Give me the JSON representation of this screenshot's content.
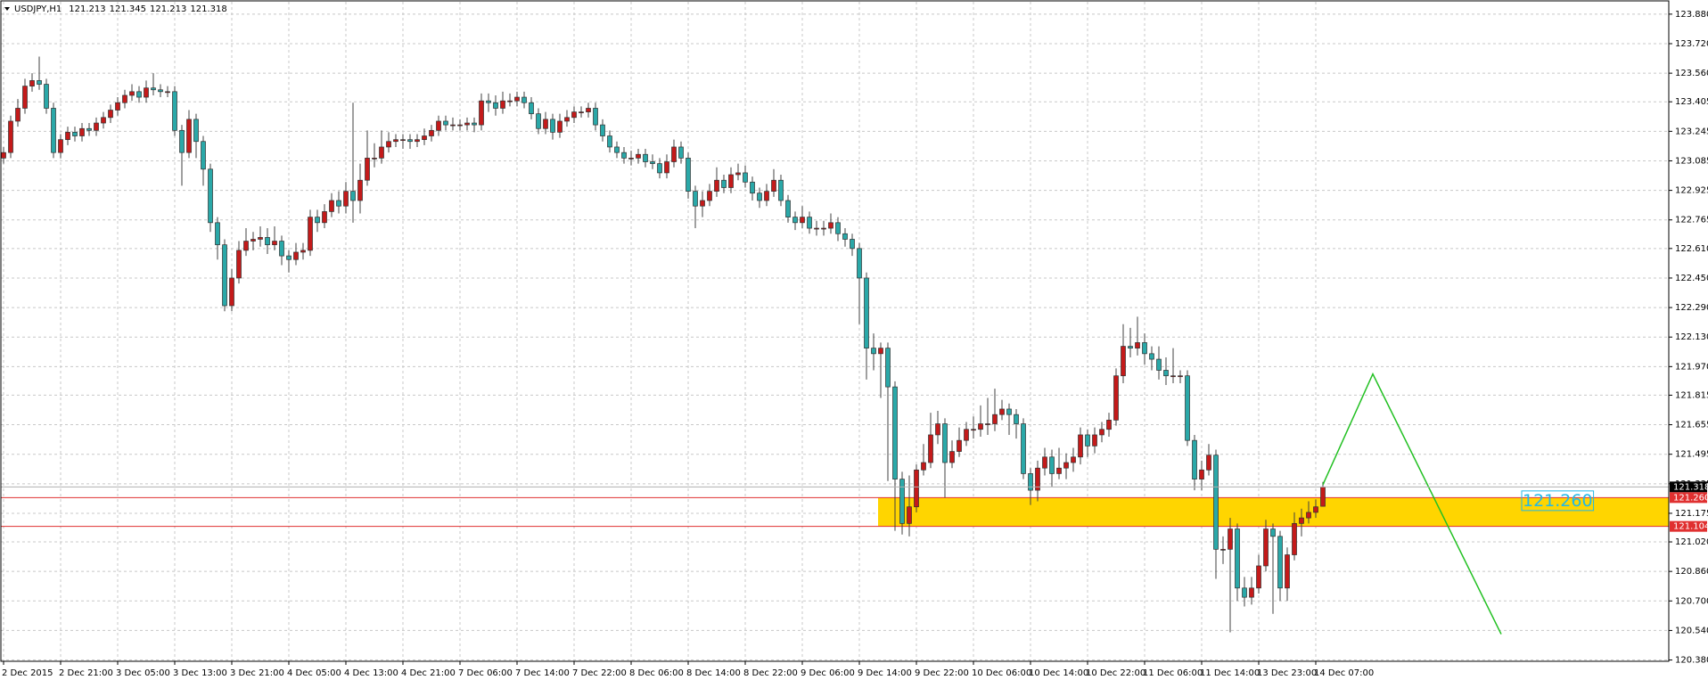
{
  "chart_data": {
    "type": "candlestick",
    "title": "USDJPY,H1",
    "up_color": "#c41a1a",
    "down_color": "#2aa8a8",
    "wick_color": "#404040",
    "grid": true,
    "ylim": [
      120.373,
      123.947
    ],
    "yticks": [
      {
        "value": 123.88,
        "label": "123.880"
      },
      {
        "value": 123.72,
        "label": "123.720"
      },
      {
        "value": 123.56,
        "label": "123.560"
      },
      123.405,
      123.245,
      123.085,
      122.925,
      122.765,
      {
        "value": 122.61,
        "label": "122.610"
      },
      {
        "value": 122.45,
        "label": "122.450"
      },
      {
        "value": 122.29,
        "label": "122.290"
      },
      {
        "value": 122.13,
        "label": "122.130"
      },
      {
        "value": 121.97,
        "label": "121.970"
      },
      121.815,
      121.655,
      121.495,
      121.335,
      121.175,
      {
        "value": 121.02,
        "label": "121.020"
      },
      {
        "value": 120.86,
        "label": "120.860"
      },
      {
        "value": 120.7,
        "label": "120.700"
      },
      {
        "value": 120.54,
        "label": "120.540"
      },
      {
        "value": 120.38,
        "label": "120.380"
      }
    ],
    "xticks": [
      {
        "value": 0,
        "label": "2 Dec 2015"
      },
      {
        "value": 8,
        "label": "2 Dec 21:00"
      },
      {
        "value": 16,
        "label": "3 Dec 05:00"
      },
      {
        "value": 24,
        "label": "3 Dec 13:00"
      },
      {
        "value": 32,
        "label": "3 Dec 21:00"
      },
      {
        "value": 40,
        "label": "4 Dec 05:00"
      },
      {
        "value": 48,
        "label": "4 Dec 13:00"
      },
      {
        "value": 56,
        "label": "4 Dec 21:00"
      },
      {
        "value": 64,
        "label": "7 Dec 06:00"
      },
      {
        "value": 72,
        "label": "7 Dec 14:00"
      },
      {
        "value": 80,
        "label": "7 Dec 22:00"
      },
      {
        "value": 88,
        "label": "8 Dec 06:00"
      },
      {
        "value": 96,
        "label": "8 Dec 14:00"
      },
      {
        "value": 104,
        "label": "8 Dec 22:00"
      },
      {
        "value": 112,
        "label": "9 Dec 06:00"
      },
      {
        "value": 120,
        "label": "9 Dec 14:00"
      },
      {
        "value": 128,
        "label": "9 Dec 22:00"
      },
      {
        "value": 136,
        "label": "10 Dec 06:00"
      },
      {
        "value": 144,
        "label": "10 Dec 14:00"
      },
      {
        "value": 152,
        "label": "10 Dec 22:00"
      },
      {
        "value": 160,
        "label": "11 Dec 06:00"
      },
      {
        "value": 168,
        "label": "11 Dec 14:00"
      },
      {
        "value": 176,
        "label": "13 Dec 23:00"
      },
      {
        "value": 184,
        "label": "14 Dec 07:00"
      }
    ],
    "open": [
      123.1,
      123.13,
      123.3,
      123.37,
      123.49,
      123.52,
      123.5,
      123.37,
      123.13,
      123.2,
      123.24,
      123.22,
      123.26,
      123.25,
      123.29,
      123.32,
      123.36,
      123.4,
      123.44,
      123.46,
      123.43,
      123.48,
      123.47,
      123.46,
      123.46,
      123.25,
      123.13,
      123.31,
      123.19,
      123.04,
      122.75,
      122.63,
      122.3,
      122.45,
      122.6,
      122.65,
      122.66,
      122.67,
      122.63,
      122.65,
      122.57,
      122.55,
      122.59,
      122.6,
      122.78,
      122.75,
      122.81,
      122.87,
      122.84,
      122.92,
      122.87,
      122.98,
      123.1,
      123.1,
      123.16,
      123.19,
      123.2,
      123.2,
      123.19,
      123.2,
      123.22,
      123.25,
      123.3,
      123.28,
      123.28,
      123.28,
      123.29,
      123.28,
      123.41,
      123.4,
      123.37,
      123.41,
      123.41,
      123.43,
      123.4,
      123.34,
      123.26,
      123.31,
      123.24,
      123.3,
      123.32,
      123.35,
      123.35,
      123.37,
      123.28,
      123.22,
      123.16,
      123.13,
      123.1,
      123.1,
      123.12,
      123.08,
      123.07,
      123.02,
      123.08,
      123.16,
      123.1,
      122.92,
      122.84,
      122.87,
      122.92,
      122.98,
      122.94,
      123.01,
      123.02,
      122.97,
      122.91,
      122.87,
      122.92,
      122.98,
      122.87,
      122.78,
      122.75,
      122.78,
      122.72,
      122.72,
      122.72,
      122.75,
      122.69,
      122.66,
      122.61,
      122.45,
      122.07,
      122.04,
      122.07,
      121.86,
      121.36,
      121.12,
      121.21,
      121.41,
      121.45,
      121.6,
      121.66,
      121.45,
      121.51,
      121.57,
      121.63,
      121.63,
      121.66,
      121.66,
      121.71,
      121.74,
      121.71,
      121.66,
      121.39,
      121.3,
      121.42,
      121.48,
      121.39,
      121.42,
      121.45,
      121.48,
      121.6,
      121.54,
      121.6,
      121.63,
      121.68,
      121.92,
      122.08,
      122.07,
      122.1,
      122.04,
      122.01,
      121.95,
      121.92,
      121.92,
      121.92,
      121.57,
      121.36,
      121.41,
      121.49,
      120.98,
      120.98,
      121.09,
      120.77,
      120.72,
      120.77,
      120.89,
      121.09,
      121.05,
      120.77,
      120.95,
      121.12,
      121.15,
      121.18,
      121.213
    ],
    "high": [
      123.16,
      123.33,
      123.42,
      123.53,
      123.56,
      123.65,
      123.53,
      123.4,
      123.23,
      123.27,
      123.27,
      123.29,
      123.29,
      123.32,
      123.35,
      123.39,
      123.43,
      123.47,
      123.5,
      123.49,
      123.52,
      123.56,
      123.5,
      123.49,
      123.49,
      123.28,
      123.36,
      123.34,
      123.22,
      123.07,
      122.78,
      122.66,
      122.5,
      122.65,
      122.72,
      122.7,
      122.73,
      122.72,
      122.73,
      122.68,
      122.6,
      122.64,
      122.64,
      122.82,
      122.82,
      122.85,
      122.91,
      122.92,
      122.97,
      123.4,
      123.07,
      123.25,
      123.18,
      123.25,
      123.24,
      123.23,
      123.23,
      123.23,
      123.23,
      123.26,
      123.28,
      123.33,
      123.33,
      123.32,
      123.31,
      123.32,
      123.32,
      123.45,
      123.45,
      123.44,
      123.46,
      123.45,
      123.46,
      123.46,
      123.43,
      123.37,
      123.35,
      123.34,
      123.34,
      123.36,
      123.38,
      123.38,
      123.4,
      123.4,
      123.31,
      123.25,
      123.19,
      123.16,
      123.14,
      123.15,
      123.15,
      123.12,
      123.1,
      123.12,
      123.2,
      123.19,
      123.13,
      122.95,
      122.92,
      122.96,
      123.05,
      123.01,
      123.05,
      123.07,
      123.06,
      123.0,
      122.94,
      122.96,
      123.04,
      123.01,
      122.9,
      122.81,
      122.84,
      122.81,
      122.76,
      122.76,
      122.8,
      122.78,
      122.72,
      122.69,
      122.64,
      122.48,
      122.15,
      122.1,
      122.1,
      121.89,
      121.4,
      121.38,
      121.44,
      121.55,
      121.72,
      121.73,
      121.69,
      121.57,
      121.64,
      121.67,
      121.7,
      121.76,
      121.8,
      121.85,
      121.79,
      121.77,
      121.74,
      121.69,
      121.42,
      121.46,
      121.53,
      121.52,
      121.53,
      121.5,
      121.53,
      121.64,
      121.63,
      121.64,
      121.67,
      121.72,
      121.96,
      122.2,
      122.18,
      122.24,
      122.15,
      122.08,
      122.08,
      122.02,
      122.07,
      121.95,
      121.95,
      121.6,
      121.46,
      121.55,
      121.52,
      121.05,
      121.15,
      121.12,
      120.83,
      120.83,
      120.95,
      121.14,
      121.12,
      121.08,
      120.99,
      121.18,
      121.2,
      121.24,
      121.25,
      121.345
    ],
    "low": [
      123.07,
      123.1,
      123.27,
      123.34,
      123.46,
      123.47,
      123.34,
      123.1,
      123.1,
      123.17,
      123.19,
      123.19,
      123.22,
      123.22,
      123.26,
      123.29,
      123.33,
      123.37,
      123.41,
      123.4,
      123.4,
      123.44,
      123.43,
      123.43,
      123.22,
      122.95,
      123.1,
      123.1,
      122.95,
      122.7,
      122.55,
      122.27,
      122.27,
      122.42,
      122.57,
      122.6,
      122.62,
      122.58,
      122.6,
      122.52,
      122.48,
      122.52,
      122.55,
      122.57,
      122.7,
      122.72,
      122.78,
      122.8,
      122.8,
      122.75,
      122.8,
      122.95,
      123.05,
      123.07,
      123.13,
      123.16,
      123.15,
      123.15,
      123.16,
      123.17,
      123.19,
      123.22,
      123.25,
      123.25,
      123.25,
      123.25,
      123.24,
      123.25,
      123.35,
      123.33,
      123.34,
      123.38,
      123.38,
      123.37,
      123.31,
      123.23,
      123.23,
      123.2,
      123.21,
      123.27,
      123.29,
      123.32,
      123.32,
      123.25,
      123.19,
      123.13,
      123.1,
      123.07,
      123.06,
      123.07,
      123.05,
      123.04,
      122.99,
      122.99,
      123.05,
      123.07,
      122.88,
      122.72,
      122.78,
      122.84,
      122.89,
      122.91,
      122.91,
      122.98,
      122.94,
      122.87,
      122.83,
      122.84,
      122.89,
      122.84,
      122.75,
      122.71,
      122.72,
      122.69,
      122.68,
      122.68,
      122.69,
      122.65,
      122.62,
      122.57,
      122.2,
      121.9,
      121.95,
      121.8,
      121.35,
      121.08,
      121.06,
      121.05,
      121.18,
      121.38,
      121.42,
      121.55,
      121.26,
      121.42,
      121.48,
      121.54,
      121.58,
      121.59,
      121.6,
      121.62,
      121.68,
      121.6,
      121.58,
      121.36,
      121.22,
      121.24,
      121.38,
      121.32,
      121.36,
      121.36,
      121.4,
      121.44,
      121.48,
      121.5,
      121.56,
      121.59,
      121.65,
      121.88,
      122.02,
      122.03,
      121.98,
      121.95,
      121.9,
      121.87,
      121.88,
      121.88,
      121.54,
      121.3,
      121.3,
      121.38,
      120.82,
      120.9,
      120.53,
      120.7,
      120.67,
      120.68,
      120.74,
      120.86,
      120.63,
      120.7,
      120.7,
      120.92,
      121.05,
      121.12,
      121.15,
      121.213
    ],
    "close": [
      123.13,
      123.3,
      123.37,
      123.49,
      123.52,
      123.5,
      123.37,
      123.13,
      123.2,
      123.24,
      123.22,
      123.26,
      123.25,
      123.29,
      123.32,
      123.36,
      123.4,
      123.44,
      123.46,
      123.43,
      123.48,
      123.47,
      123.46,
      123.46,
      123.25,
      123.13,
      123.31,
      123.19,
      123.04,
      122.75,
      122.63,
      122.3,
      122.45,
      122.6,
      122.65,
      122.66,
      122.67,
      122.63,
      122.65,
      122.57,
      122.55,
      122.59,
      122.6,
      122.78,
      122.75,
      122.81,
      122.87,
      122.84,
      122.92,
      122.87,
      122.98,
      123.1,
      123.1,
      123.16,
      123.19,
      123.2,
      123.2,
      123.19,
      123.2,
      123.22,
      123.25,
      123.3,
      123.28,
      123.28,
      123.28,
      123.29,
      123.28,
      123.41,
      123.4,
      123.37,
      123.41,
      123.41,
      123.43,
      123.4,
      123.34,
      123.26,
      123.31,
      123.24,
      123.3,
      123.32,
      123.35,
      123.35,
      123.37,
      123.28,
      123.22,
      123.16,
      123.13,
      123.1,
      123.1,
      123.12,
      123.08,
      123.07,
      123.02,
      123.08,
      123.16,
      123.1,
      122.92,
      122.84,
      122.87,
      122.92,
      122.98,
      122.94,
      123.01,
      123.02,
      122.97,
      122.91,
      122.87,
      122.92,
      122.98,
      122.87,
      122.78,
      122.75,
      122.78,
      122.72,
      122.72,
      122.72,
      122.75,
      122.69,
      122.66,
      122.61,
      122.45,
      122.07,
      122.04,
      122.07,
      121.86,
      121.36,
      121.12,
      121.21,
      121.41,
      121.45,
      121.6,
      121.66,
      121.45,
      121.51,
      121.57,
      121.63,
      121.63,
      121.66,
      121.66,
      121.71,
      121.74,
      121.71,
      121.66,
      121.39,
      121.3,
      121.42,
      121.48,
      121.39,
      121.42,
      121.45,
      121.48,
      121.6,
      121.54,
      121.6,
      121.63,
      121.68,
      121.92,
      122.08,
      122.07,
      122.1,
      122.04,
      122.01,
      121.95,
      121.92,
      121.92,
      121.92,
      121.57,
      121.36,
      121.41,
      121.49,
      120.98,
      120.98,
      121.09,
      120.77,
      120.72,
      120.77,
      120.89,
      121.09,
      121.05,
      120.77,
      120.95,
      121.12,
      121.15,
      121.18,
      121.21,
      121.318
    ],
    "bid": {
      "value": 121.318,
      "label": "121.318"
    },
    "levels": [
      {
        "value": 121.26,
        "label": "121.260",
        "color": "#e03030"
      },
      {
        "value": 121.104,
        "label": "121.104",
        "color": "#e03030"
      }
    ],
    "zone": {
      "start": 123,
      "color": "#ffd500",
      "label_color": "#22b8e8"
    },
    "projection": {
      "color": "#22c022",
      "x": [
        185,
        192,
        210
      ],
      "values": [
        121.33,
        121.93,
        120.52
      ]
    }
  }
}
